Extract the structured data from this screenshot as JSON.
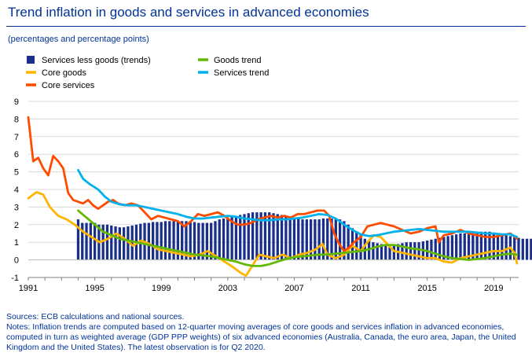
{
  "title": "Trend inflation in goods and services in advanced economies",
  "subtitle": "(percentages and percentage points)",
  "source": "Sources: ECB calculations and national sources.",
  "notes": "Notes: Inflation trends are computed based on 12-quarter moving averages of core goods and services inflation in advanced economies, computed in turn as weighted average (GDP PPP weights) of six advanced economies (Australia, Canada, the euro area, Japan, the United Kingdom and the United States). The latest observation is for Q2 2020.",
  "chart_data": {
    "type": "bar+line",
    "xlim": [
      1991,
      2020.5
    ],
    "ylim": [
      -1,
      9
    ],
    "yticks": [
      -1,
      0,
      1,
      2,
      3,
      4,
      5,
      6,
      7,
      8,
      9
    ],
    "xticks": [
      1991,
      1995,
      1999,
      2003,
      2007,
      2011,
      2015,
      2019
    ],
    "legend": [
      "Services less goods (trends)",
      "Core goods",
      "Core  services",
      "Goods trend",
      "Services trend"
    ],
    "colors": {
      "bars": "#1a2f8c",
      "core_goods": "#ffb400",
      "core_services": "#ff4b00",
      "goods_trend": "#65b800",
      "services_trend": "#00b1ea"
    },
    "bars": {
      "x_start": 1994.0,
      "step": 0.25,
      "values": [
        2.3,
        2.1,
        2.1,
        2.1,
        2.1,
        2.0,
        2.0,
        2.0,
        1.95,
        1.9,
        1.85,
        1.85,
        1.9,
        1.95,
        2.0,
        2.05,
        2.1,
        2.1,
        2.15,
        2.15,
        2.15,
        2.2,
        2.2,
        2.2,
        2.2,
        2.2,
        2.2,
        2.2,
        2.15,
        2.1,
        2.1,
        2.1,
        2.1,
        2.2,
        2.3,
        2.35,
        2.4,
        2.45,
        2.5,
        2.55,
        2.6,
        2.65,
        2.7,
        2.7,
        2.7,
        2.7,
        2.7,
        2.65,
        2.6,
        2.55,
        2.5,
        2.45,
        2.4,
        2.35,
        2.3,
        2.3,
        2.3,
        2.3,
        2.3,
        2.35,
        2.35,
        2.35,
        2.3,
        2.3,
        2.2,
        2.0,
        1.8,
        1.6,
        1.4,
        1.2,
        1.1,
        1.0,
        0.95,
        0.9,
        0.85,
        0.85,
        0.85,
        0.9,
        0.95,
        1.0,
        1.0,
        1.0,
        1.0,
        1.05,
        1.1,
        1.15,
        1.2,
        1.25,
        1.3,
        1.35,
        1.4,
        1.45,
        1.5,
        1.5,
        1.5,
        1.55,
        1.55,
        1.6,
        1.6,
        1.6,
        1.55,
        1.5,
        1.45,
        1.4,
        1.35,
        1.3,
        1.25,
        1.2,
        1.2,
        1.2
      ]
    },
    "series": [
      {
        "name": "Core goods",
        "key": "core_goods",
        "points": [
          [
            1991,
            3.5
          ],
          [
            1991.5,
            3.85
          ],
          [
            1991.9,
            3.7
          ],
          [
            1992.3,
            3.0
          ],
          [
            1992.8,
            2.5
          ],
          [
            1993.3,
            2.3
          ],
          [
            1993.8,
            2.0
          ],
          [
            1994.3,
            1.6
          ],
          [
            1994.8,
            1.3
          ],
          [
            1995.3,
            1.0
          ],
          [
            1995.8,
            1.2
          ],
          [
            1996.3,
            1.5
          ],
          [
            1996.8,
            1.2
          ],
          [
            1997.3,
            0.8
          ],
          [
            1997.8,
            1.1
          ],
          [
            1998.3,
            0.9
          ],
          [
            1998.8,
            0.6
          ],
          [
            1999.3,
            0.5
          ],
          [
            1999.8,
            0.4
          ],
          [
            2000.3,
            0.3
          ],
          [
            2000.8,
            0.2
          ],
          [
            2001.3,
            0.3
          ],
          [
            2001.8,
            0.5
          ],
          [
            2002.3,
            0.2
          ],
          [
            2002.8,
            -0.1
          ],
          [
            2003.3,
            -0.4
          ],
          [
            2003.8,
            -0.75
          ],
          [
            2004.1,
            -0.9
          ],
          [
            2004.5,
            -0.3
          ],
          [
            2004.9,
            0.3
          ],
          [
            2005.3,
            0.2
          ],
          [
            2005.8,
            0.1
          ],
          [
            2006.3,
            0.3
          ],
          [
            2006.8,
            0.1
          ],
          [
            2007.3,
            0.3
          ],
          [
            2007.8,
            0.4
          ],
          [
            2008.3,
            0.6
          ],
          [
            2008.7,
            0.9
          ],
          [
            2009.0,
            0.3
          ],
          [
            2009.5,
            0.1
          ],
          [
            2010.0,
            0.3
          ],
          [
            2010.5,
            0.8
          ],
          [
            2011.0,
            0.5
          ],
          [
            2011.4,
            1.0
          ],
          [
            2011.8,
            1.4
          ],
          [
            2012.2,
            1.3
          ],
          [
            2012.6,
            0.9
          ],
          [
            2013.0,
            0.5
          ],
          [
            2013.5,
            0.4
          ],
          [
            2014.0,
            0.3
          ],
          [
            2014.5,
            0.2
          ],
          [
            2015.0,
            0.1
          ],
          [
            2015.5,
            0.1
          ],
          [
            2016.0,
            -0.1
          ],
          [
            2016.5,
            -0.15
          ],
          [
            2017.0,
            0.1
          ],
          [
            2017.5,
            0.2
          ],
          [
            2018.0,
            0.3
          ],
          [
            2018.5,
            0.4
          ],
          [
            2019.0,
            0.5
          ],
          [
            2019.5,
            0.5
          ],
          [
            2020.0,
            0.7
          ],
          [
            2020.25,
            0.4
          ],
          [
            2020.4,
            -0.2
          ]
        ]
      },
      {
        "name": "Core  services",
        "key": "core_services",
        "points": [
          [
            1991,
            8.1
          ],
          [
            1991.3,
            5.6
          ],
          [
            1991.6,
            5.8
          ],
          [
            1991.9,
            5.2
          ],
          [
            1992.2,
            4.8
          ],
          [
            1992.5,
            5.9
          ],
          [
            1992.8,
            5.6
          ],
          [
            1993.1,
            5.2
          ],
          [
            1993.4,
            3.8
          ],
          [
            1993.7,
            3.4
          ],
          [
            1994.0,
            3.3
          ],
          [
            1994.3,
            3.2
          ],
          [
            1994.6,
            3.4
          ],
          [
            1994.9,
            3.1
          ],
          [
            1995.2,
            2.9
          ],
          [
            1995.5,
            3.1
          ],
          [
            1995.8,
            3.3
          ],
          [
            1996.1,
            3.4
          ],
          [
            1996.4,
            3.2
          ],
          [
            1996.8,
            3.1
          ],
          [
            1997.2,
            3.2
          ],
          [
            1997.6,
            3.1
          ],
          [
            1998.0,
            2.7
          ],
          [
            1998.4,
            2.3
          ],
          [
            1998.8,
            2.5
          ],
          [
            1999.2,
            2.4
          ],
          [
            1999.6,
            2.3
          ],
          [
            2000.0,
            2.2
          ],
          [
            2000.4,
            1.9
          ],
          [
            2000.8,
            2.2
          ],
          [
            2001.2,
            2.6
          ],
          [
            2001.6,
            2.5
          ],
          [
            2002.0,
            2.6
          ],
          [
            2002.4,
            2.7
          ],
          [
            2002.8,
            2.5
          ],
          [
            2003.2,
            2.2
          ],
          [
            2003.6,
            2.0
          ],
          [
            2004.0,
            2.0
          ],
          [
            2004.4,
            2.1
          ],
          [
            2004.8,
            2.3
          ],
          [
            2005.2,
            2.4
          ],
          [
            2005.6,
            2.5
          ],
          [
            2006.0,
            2.4
          ],
          [
            2006.4,
            2.5
          ],
          [
            2006.8,
            2.4
          ],
          [
            2007.2,
            2.6
          ],
          [
            2007.6,
            2.6
          ],
          [
            2008.0,
            2.7
          ],
          [
            2008.4,
            2.8
          ],
          [
            2008.8,
            2.8
          ],
          [
            2009.1,
            2.5
          ],
          [
            2009.4,
            1.5
          ],
          [
            2009.7,
            0.9
          ],
          [
            2010.0,
            0.5
          ],
          [
            2010.3,
            0.7
          ],
          [
            2010.6,
            1.0
          ],
          [
            2011.0,
            1.3
          ],
          [
            2011.4,
            1.9
          ],
          [
            2011.8,
            2.0
          ],
          [
            2012.2,
            2.1
          ],
          [
            2012.6,
            2.0
          ],
          [
            2013.0,
            1.9
          ],
          [
            2013.5,
            1.7
          ],
          [
            2014.0,
            1.5
          ],
          [
            2014.5,
            1.6
          ],
          [
            2015.0,
            1.8
          ],
          [
            2015.5,
            1.9
          ],
          [
            2015.7,
            1.0
          ],
          [
            2016.0,
            1.4
          ],
          [
            2016.5,
            1.5
          ],
          [
            2017.0,
            1.7
          ],
          [
            2017.5,
            1.5
          ],
          [
            2018.0,
            1.4
          ],
          [
            2018.5,
            1.3
          ],
          [
            2019.0,
            1.3
          ],
          [
            2019.5,
            1.4
          ],
          [
            2020.0,
            1.5
          ],
          [
            2020.4,
            1.2
          ]
        ]
      },
      {
        "name": "Goods trend",
        "key": "goods_trend",
        "points": [
          [
            1994.0,
            2.8
          ],
          [
            1994.5,
            2.4
          ],
          [
            1995.0,
            2.0
          ],
          [
            1995.5,
            1.6
          ],
          [
            1996.0,
            1.4
          ],
          [
            1996.5,
            1.2
          ],
          [
            1997.0,
            1.1
          ],
          [
            1997.5,
            1.0
          ],
          [
            1998.0,
            0.9
          ],
          [
            1998.5,
            0.8
          ],
          [
            1999.0,
            0.7
          ],
          [
            1999.5,
            0.6
          ],
          [
            2000.0,
            0.5
          ],
          [
            2000.5,
            0.4
          ],
          [
            2001.0,
            0.3
          ],
          [
            2001.5,
            0.25
          ],
          [
            2002.0,
            0.2
          ],
          [
            2002.5,
            0.1
          ],
          [
            2003.0,
            0.0
          ],
          [
            2003.5,
            -0.1
          ],
          [
            2004.0,
            -0.25
          ],
          [
            2004.5,
            -0.35
          ],
          [
            2005.0,
            -0.35
          ],
          [
            2005.5,
            -0.25
          ],
          [
            2006.0,
            -0.1
          ],
          [
            2006.5,
            0.05
          ],
          [
            2007.0,
            0.15
          ],
          [
            2007.5,
            0.2
          ],
          [
            2008.0,
            0.25
          ],
          [
            2008.5,
            0.3
          ],
          [
            2009.0,
            0.3
          ],
          [
            2009.5,
            0.35
          ],
          [
            2010.0,
            0.4
          ],
          [
            2010.5,
            0.45
          ],
          [
            2011.0,
            0.5
          ],
          [
            2011.5,
            0.6
          ],
          [
            2012.0,
            0.75
          ],
          [
            2012.5,
            0.85
          ],
          [
            2013.0,
            0.85
          ],
          [
            2013.5,
            0.75
          ],
          [
            2014.0,
            0.65
          ],
          [
            2014.5,
            0.6
          ],
          [
            2015.0,
            0.5
          ],
          [
            2015.5,
            0.35
          ],
          [
            2016.0,
            0.2
          ],
          [
            2016.5,
            0.1
          ],
          [
            2017.0,
            0.05
          ],
          [
            2017.5,
            0.0
          ],
          [
            2018.0,
            0.05
          ],
          [
            2018.5,
            0.1
          ],
          [
            2019.0,
            0.2
          ],
          [
            2019.5,
            0.3
          ],
          [
            2020.0,
            0.35
          ],
          [
            2020.4,
            0.3
          ]
        ]
      },
      {
        "name": "Services trend",
        "key": "services_trend",
        "points": [
          [
            1994.0,
            5.1
          ],
          [
            1994.3,
            4.6
          ],
          [
            1994.7,
            4.3
          ],
          [
            1995.2,
            4.0
          ],
          [
            1995.6,
            3.6
          ],
          [
            1996.0,
            3.3
          ],
          [
            1996.5,
            3.15
          ],
          [
            1997.0,
            3.1
          ],
          [
            1997.5,
            3.1
          ],
          [
            1998.0,
            3.0
          ],
          [
            1998.5,
            2.9
          ],
          [
            1999.0,
            2.8
          ],
          [
            1999.5,
            2.7
          ],
          [
            2000.0,
            2.6
          ],
          [
            2000.5,
            2.45
          ],
          [
            2001.0,
            2.35
          ],
          [
            2001.5,
            2.35
          ],
          [
            2002.0,
            2.4
          ],
          [
            2002.5,
            2.45
          ],
          [
            2003.0,
            2.5
          ],
          [
            2003.5,
            2.45
          ],
          [
            2004.0,
            2.35
          ],
          [
            2004.5,
            2.3
          ],
          [
            2005.0,
            2.25
          ],
          [
            2005.5,
            2.25
          ],
          [
            2006.0,
            2.3
          ],
          [
            2006.5,
            2.3
          ],
          [
            2007.0,
            2.35
          ],
          [
            2007.5,
            2.4
          ],
          [
            2008.0,
            2.5
          ],
          [
            2008.5,
            2.6
          ],
          [
            2009.0,
            2.55
          ],
          [
            2009.5,
            2.35
          ],
          [
            2010.0,
            2.0
          ],
          [
            2010.5,
            1.7
          ],
          [
            2011.0,
            1.45
          ],
          [
            2011.5,
            1.35
          ],
          [
            2012.0,
            1.4
          ],
          [
            2012.5,
            1.5
          ],
          [
            2013.0,
            1.6
          ],
          [
            2013.5,
            1.65
          ],
          [
            2014.0,
            1.7
          ],
          [
            2014.5,
            1.75
          ],
          [
            2015.0,
            1.7
          ],
          [
            2015.5,
            1.65
          ],
          [
            2016.0,
            1.6
          ],
          [
            2016.5,
            1.6
          ],
          [
            2017.0,
            1.6
          ],
          [
            2017.5,
            1.6
          ],
          [
            2018.0,
            1.55
          ],
          [
            2018.5,
            1.5
          ],
          [
            2019.0,
            1.5
          ],
          [
            2019.5,
            1.45
          ],
          [
            2020.0,
            1.45
          ],
          [
            2020.4,
            1.3
          ]
        ]
      }
    ]
  }
}
